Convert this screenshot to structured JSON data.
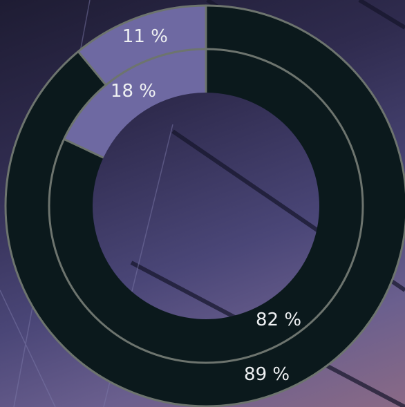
{
  "chart_data": {
    "type": "donut",
    "series": [
      {
        "values": [
          89,
          11
        ],
        "value_labels": [
          "89 %",
          "11 %"
        ],
        "colors": [
          "#0b191c",
          "#6e69a2"
        ]
      },
      {
        "values": [
          82,
          18
        ],
        "value_labels": [
          "82 %",
          "18 %"
        ],
        "colors": [
          "#0b191c",
          "#6e69a2"
        ]
      }
    ],
    "separator_color": "#6d746e"
  }
}
